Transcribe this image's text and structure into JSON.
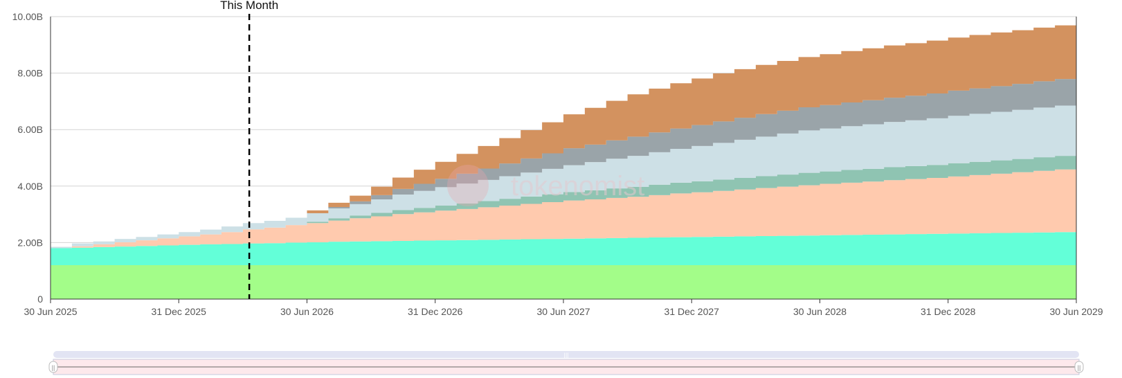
{
  "watermark": {
    "text": "tokenomist"
  },
  "colors": {
    "gridline": "#d3d3d3",
    "axis": "#333333",
    "marker": "#000000",
    "navigator_track": "#e2e4f3",
    "navigator_fill": "#fde9ec",
    "navigator_outline": "#c6c9de"
  },
  "chart_data": {
    "type": "area",
    "stacked": true,
    "step": true,
    "x": [
      "30 Jun 2025",
      "31 Jul 2025",
      "31 Aug 2025",
      "30 Sep 2025",
      "31 Oct 2025",
      "30 Nov 2025",
      "31 Dec 2025",
      "31 Jan 2026",
      "28 Feb 2026",
      "31 Mar 2026",
      "30 Apr 2026",
      "31 May 2026",
      "30 Jun 2026",
      "31 Jul 2026",
      "31 Aug 2026",
      "30 Sep 2026",
      "31 Oct 2026",
      "30 Nov 2026",
      "31 Dec 2026",
      "31 Jan 2027",
      "28 Feb 2027",
      "31 Mar 2027",
      "30 Apr 2027",
      "31 May 2027",
      "30 Jun 2027",
      "31 Jul 2027",
      "31 Aug 2027",
      "30 Sep 2027",
      "31 Oct 2027",
      "30 Nov 2027",
      "31 Dec 2027",
      "31 Jan 2028",
      "29 Feb 2028",
      "31 Mar 2028",
      "30 Apr 2028",
      "31 May 2028",
      "30 Jun 2028",
      "31 Jul 2028",
      "31 Aug 2028",
      "30 Sep 2028",
      "31 Oct 2028",
      "30 Nov 2028",
      "31 Dec 2028",
      "31 Jan 2029",
      "28 Feb 2029",
      "31 Mar 2029",
      "30 Apr 2029",
      "31 May 2029",
      "30 Jun 2029"
    ],
    "series": [
      {
        "color": "#a3fd89",
        "values": [
          1.2,
          1.2,
          1.2,
          1.2,
          1.2,
          1.2,
          1.2,
          1.2,
          1.2,
          1.2,
          1.2,
          1.2,
          1.2,
          1.2,
          1.2,
          1.2,
          1.2,
          1.2,
          1.2,
          1.2,
          1.2,
          1.2,
          1.2,
          1.2,
          1.2,
          1.2,
          1.2,
          1.2,
          1.2,
          1.2,
          1.2,
          1.2,
          1.2,
          1.2,
          1.2,
          1.2,
          1.2,
          1.2,
          1.2,
          1.2,
          1.2,
          1.2,
          1.2,
          1.2,
          1.2,
          1.2,
          1.2,
          1.2,
          1.2
        ]
      },
      {
        "color": "#63ffd8",
        "values": [
          0.6,
          0.62,
          0.64,
          0.66,
          0.68,
          0.7,
          0.72,
          0.74,
          0.75,
          0.77,
          0.78,
          0.8,
          0.81,
          0.83,
          0.84,
          0.85,
          0.86,
          0.87,
          0.88,
          0.89,
          0.9,
          0.91,
          0.92,
          0.93,
          0.94,
          0.95,
          0.96,
          0.97,
          0.98,
          0.99,
          1.0,
          1.01,
          1.02,
          1.03,
          1.04,
          1.05,
          1.06,
          1.07,
          1.08,
          1.09,
          1.1,
          1.11,
          1.12,
          1.13,
          1.14,
          1.15,
          1.16,
          1.17,
          1.2
        ]
      },
      {
        "color": "#ffcaae",
        "values": [
          0.0,
          0.05,
          0.1,
          0.15,
          0.2,
          0.25,
          0.3,
          0.35,
          0.42,
          0.5,
          0.55,
          0.62,
          0.68,
          0.75,
          0.82,
          0.88,
          0.95,
          1.0,
          1.05,
          1.1,
          1.15,
          1.2,
          1.25,
          1.3,
          1.35,
          1.38,
          1.42,
          1.45,
          1.5,
          1.55,
          1.58,
          1.62,
          1.66,
          1.7,
          1.74,
          1.78,
          1.82,
          1.85,
          1.88,
          1.92,
          1.95,
          1.98,
          2.02,
          2.06,
          2.1,
          2.14,
          2.18,
          2.22,
          2.4
        ]
      },
      {
        "color": "#8fc4b2",
        "values": [
          0.0,
          0.0,
          0.0,
          0.0,
          0.0,
          0.0,
          0.0,
          0.0,
          0.0,
          0.0,
          0.0,
          0.0,
          0.05,
          0.08,
          0.1,
          0.12,
          0.14,
          0.16,
          0.18,
          0.2,
          0.22,
          0.24,
          0.26,
          0.28,
          0.3,
          0.32,
          0.34,
          0.35,
          0.37,
          0.38,
          0.39,
          0.4,
          0.41,
          0.42,
          0.43,
          0.44,
          0.44,
          0.45,
          0.45,
          0.46,
          0.46,
          0.46,
          0.47,
          0.47,
          0.47,
          0.47,
          0.48,
          0.48,
          0.48
        ]
      },
      {
        "color": "#cde0e6",
        "values": [
          0.05,
          0.1,
          0.1,
          0.12,
          0.12,
          0.14,
          0.15,
          0.17,
          0.2,
          0.22,
          0.24,
          0.26,
          0.3,
          0.35,
          0.4,
          0.48,
          0.55,
          0.6,
          0.65,
          0.7,
          0.75,
          0.8,
          0.85,
          0.9,
          0.95,
          1.0,
          1.05,
          1.1,
          1.15,
          1.2,
          1.25,
          1.3,
          1.35,
          1.4,
          1.45,
          1.5,
          1.52,
          1.55,
          1.58,
          1.6,
          1.62,
          1.65,
          1.68,
          1.7,
          1.72,
          1.74,
          1.76,
          1.78,
          1.82
        ]
      },
      {
        "color": "#9aa4a9",
        "values": [
          0.0,
          0.0,
          0.0,
          0.0,
          0.0,
          0.0,
          0.0,
          0.0,
          0.0,
          0.0,
          0.0,
          0.0,
          0.0,
          0.05,
          0.1,
          0.15,
          0.2,
          0.25,
          0.3,
          0.35,
          0.4,
          0.45,
          0.5,
          0.55,
          0.6,
          0.62,
          0.65,
          0.68,
          0.7,
          0.72,
          0.74,
          0.76,
          0.78,
          0.8,
          0.81,
          0.82,
          0.83,
          0.84,
          0.85,
          0.86,
          0.87,
          0.88,
          0.89,
          0.9,
          0.91,
          0.92,
          0.93,
          0.94,
          1.0
        ]
      },
      {
        "color": "#d3925f",
        "values": [
          0.0,
          0.0,
          0.0,
          0.0,
          0.0,
          0.0,
          0.0,
          0.0,
          0.0,
          0.0,
          0.0,
          0.0,
          0.1,
          0.15,
          0.2,
          0.3,
          0.4,
          0.5,
          0.6,
          0.7,
          0.8,
          0.9,
          1.0,
          1.1,
          1.2,
          1.3,
          1.4,
          1.5,
          1.55,
          1.6,
          1.65,
          1.7,
          1.72,
          1.74,
          1.76,
          1.78,
          1.8,
          1.82,
          1.84,
          1.85,
          1.86,
          1.87,
          1.88,
          1.89,
          1.9,
          1.9,
          1.9,
          1.9,
          1.9
        ]
      }
    ],
    "y_ticks": [
      "0",
      "2.00B",
      "4.00B",
      "6.00B",
      "8.00B",
      "10.00B"
    ],
    "y_tick_values": [
      0,
      2,
      4,
      6,
      8,
      10
    ],
    "ylim": [
      0,
      10
    ],
    "x_ticks": [
      "30 Jun 2025",
      "31 Dec 2025",
      "30 Jun 2026",
      "31 Dec 2026",
      "30 Jun 2027",
      "31 Dec 2027",
      "30 Jun 2028",
      "31 Dec 2028",
      "30 Jun 2029"
    ],
    "marker": {
      "label": "This Month",
      "x": "31 Mar 2026"
    },
    "grid": true,
    "legend": "none"
  }
}
